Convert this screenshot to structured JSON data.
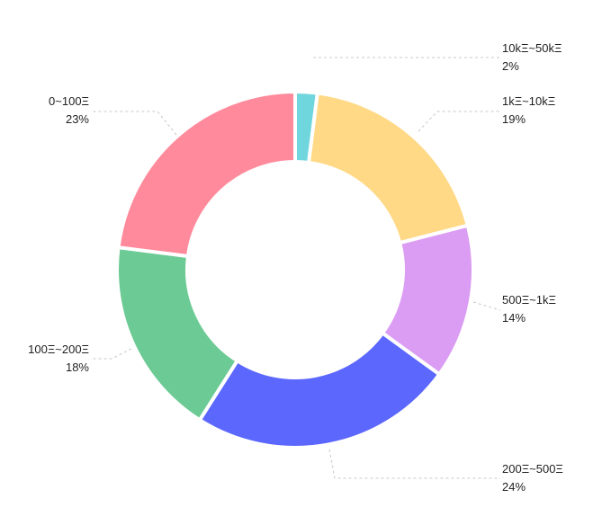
{
  "chart_data": {
    "type": "pie",
    "variant": "donut",
    "legend": "none",
    "slices": [
      {
        "label": "10kΞ~50kΞ",
        "percent_label": "2%",
        "value": 2,
        "color": "#6ED6DC"
      },
      {
        "label": "1kΞ~10kΞ",
        "percent_label": "19%",
        "value": 19,
        "color": "#FFD986"
      },
      {
        "label": "500Ξ~1kΞ",
        "percent_label": "14%",
        "value": 14,
        "color": "#DB9CF3"
      },
      {
        "label": "200Ξ~500Ξ",
        "percent_label": "24%",
        "value": 24,
        "color": "#5B67FD"
      },
      {
        "label": "100Ξ~200Ξ",
        "percent_label": "18%",
        "value": 18,
        "color": "#6CCA95"
      },
      {
        "label": "0~100Ξ",
        "percent_label": "23%",
        "value": 23,
        "color": "#FF8A9B"
      }
    ]
  }
}
